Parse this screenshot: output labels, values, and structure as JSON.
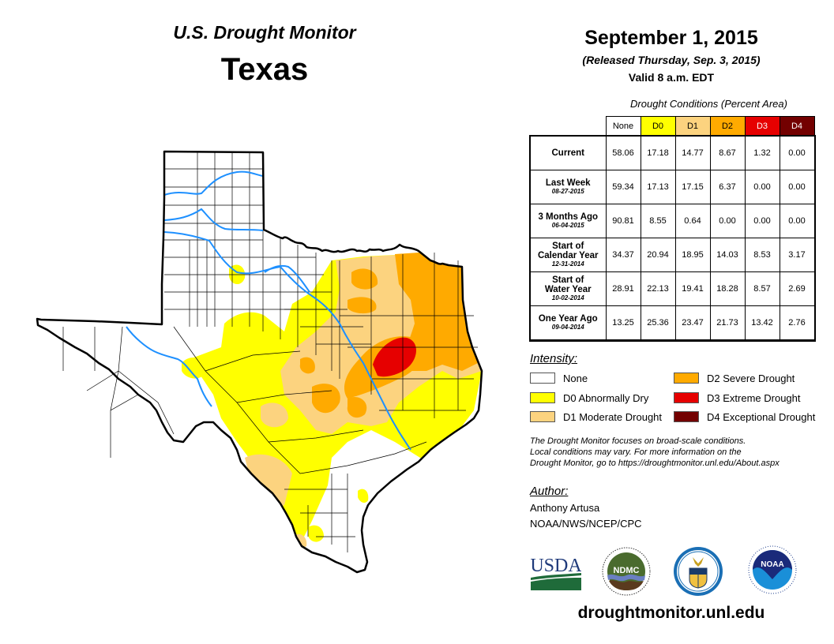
{
  "header": {
    "map_title": "U.S. Drought Monitor",
    "state": "Texas",
    "date": "September 1, 2015",
    "released": "(Released Thursday, Sep. 3, 2015)",
    "valid": "Valid 8 a.m. EDT"
  },
  "table": {
    "caption": "Drought Conditions (Percent Area)",
    "columns": [
      {
        "label": "None",
        "color": "#ffffff",
        "text_color": "#000000"
      },
      {
        "label": "D0",
        "color": "#ffff00",
        "text_color": "#000000"
      },
      {
        "label": "D1",
        "color": "#fcd37f",
        "text_color": "#000000"
      },
      {
        "label": "D2",
        "color": "#ffaa00",
        "text_color": "#000000"
      },
      {
        "label": "D3",
        "color": "#e60000",
        "text_color": "#ffffff"
      },
      {
        "label": "D4",
        "color": "#730000",
        "text_color": "#ffffff"
      }
    ],
    "rows": [
      {
        "label": "Current",
        "label2": "",
        "date": "",
        "values": [
          "58.06",
          "17.18",
          "14.77",
          "8.67",
          "1.32",
          "0.00"
        ]
      },
      {
        "label": "Last Week",
        "label2": "",
        "date": "08-27-2015",
        "values": [
          "59.34",
          "17.13",
          "17.15",
          "6.37",
          "0.00",
          "0.00"
        ]
      },
      {
        "label": "3 Months Ago",
        "label2": "",
        "date": "06-04-2015",
        "values": [
          "90.81",
          "8.55",
          "0.64",
          "0.00",
          "0.00",
          "0.00"
        ]
      },
      {
        "label": "Start of",
        "label2": "Calendar Year",
        "date": "12-31-2014",
        "values": [
          "34.37",
          "20.94",
          "18.95",
          "14.03",
          "8.53",
          "3.17"
        ]
      },
      {
        "label": "Start of",
        "label2": "Water Year",
        "date": "10-02-2014",
        "values": [
          "28.91",
          "22.13",
          "19.41",
          "18.28",
          "8.57",
          "2.69"
        ]
      },
      {
        "label": "One Year Ago",
        "label2": "",
        "date": "09-04-2014",
        "values": [
          "13.25",
          "25.36",
          "23.47",
          "21.73",
          "13.42",
          "2.76"
        ]
      }
    ]
  },
  "legend": {
    "title": "Intensity:",
    "items": [
      {
        "label": "None",
        "color": "#ffffff"
      },
      {
        "label": "D0 Abnormally Dry",
        "color": "#ffff00"
      },
      {
        "label": "D1 Moderate Drought",
        "color": "#fcd37f"
      },
      {
        "label": "D2 Severe Drought",
        "color": "#ffaa00"
      },
      {
        "label": "D3 Extreme Drought",
        "color": "#e60000"
      },
      {
        "label": "D4 Exceptional Drought",
        "color": "#730000"
      }
    ]
  },
  "note": {
    "line1": "The Drought Monitor focuses on broad-scale conditions.",
    "line2": "Local conditions may vary. For more information on the",
    "line3": "Drought Monitor, go to https://droughtmonitor.unl.edu/About.aspx"
  },
  "author": {
    "title": "Author:",
    "name": "Anthony Artusa",
    "org": "NOAA/NWS/NCEP/CPC"
  },
  "logos": {
    "usda": "USDA",
    "ndmc": "NDMC",
    "noaa": "NOAA"
  },
  "footer": {
    "website": "droughtmonitor.unl.edu"
  },
  "colors": {
    "river": "#1e90ff",
    "border": "#000000"
  }
}
